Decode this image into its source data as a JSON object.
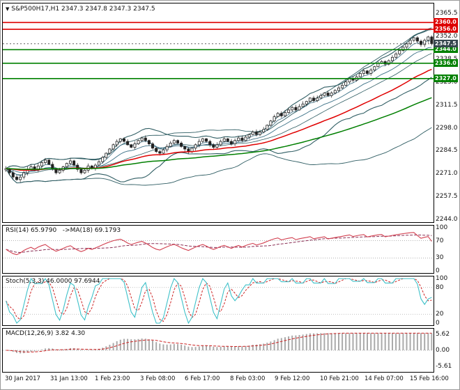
{
  "header": {
    "symbol_line": "S&P500H17,H1 2347.3 2347.8 2347.3 2347.5"
  },
  "indicator_labels": {
    "rsi": "RSI(14) 65.9790",
    "rsi_ma": "->MA(18) 69.1793",
    "stoch": "Stoch(5,3,3) 46.0000 97.6944",
    "macd": "MACD(12,26,9) 3.82 4.30"
  },
  "colors": {
    "resistance": "#dd0000",
    "support": "#008000",
    "current_tag_bg": "#37474f",
    "candle": "#222222",
    "band": "#2f5d63",
    "fast_ma": "#3b7086",
    "ma_red": "#e00000",
    "ma_green": "#007f00",
    "rsi": "#d23f4f",
    "rsi_ma": "#8a2f55",
    "stoch_k": "#3ec1c9",
    "signal_red": "#cc2222",
    "macd_hist": "#aaaaaa"
  },
  "chart_data": {
    "type": "candlestick",
    "title": "S&P500H17,H1",
    "timeframe": "H1",
    "ohlc_header": {
      "open": 2347.3,
      "high": 2347.8,
      "low": 2347.3,
      "close": 2347.5
    },
    "x_ticks": [
      "30 Jan 2017",
      "31 Jan 13:00",
      "1 Feb 23:00",
      "3 Feb 08:00",
      "6 Feb 17:00",
      "8 Feb 03:00",
      "9 Feb 12:00",
      "10 Feb 21:00",
      "14 Feb 07:00",
      "15 Feb 16:00"
    ],
    "y_ticks_main": [
      2365.5,
      2352.0,
      2338.5,
      2325.0,
      2311.5,
      2298.0,
      2284.5,
      2271.0,
      2257.5,
      2244.0
    ],
    "y_range_main": [
      2242.4,
      2371.2
    ],
    "levels": {
      "resistance": [
        2360.0,
        2356.0
      ],
      "current": 2347.5,
      "support": [
        2344.0,
        2336.0,
        2327.0
      ]
    },
    "close_series": [
      2274.0,
      2271.5,
      2269.0,
      2267.5,
      2269.0,
      2271.5,
      2273.5,
      2275.0,
      2273.0,
      2275.5,
      2277.5,
      2279.0,
      2276.5,
      2274.0,
      2271.5,
      2273.0,
      2275.0,
      2277.0,
      2278.5,
      2276.0,
      2273.5,
      2271.5,
      2273.0,
      2275.5,
      2274.0,
      2276.0,
      2278.0,
      2280.5,
      2283.0,
      2285.5,
      2288.0,
      2290.0,
      2291.5,
      2290.0,
      2288.0,
      2286.5,
      2288.5,
      2290.5,
      2292.0,
      2290.5,
      2288.5,
      2286.0,
      2284.0,
      2283.0,
      2285.0,
      2287.0,
      2289.0,
      2290.5,
      2289.0,
      2287.0,
      2285.5,
      2284.0,
      2286.0,
      2288.0,
      2290.0,
      2291.5,
      2290.0,
      2288.0,
      2286.5,
      2288.0,
      2290.0,
      2291.5,
      2290.0,
      2288.5,
      2290.5,
      2292.0,
      2290.5,
      2292.5,
      2294.0,
      2295.5,
      2294.0,
      2295.5,
      2297.0,
      2299.5,
      2302.0,
      2304.5,
      2306.5,
      2305.0,
      2307.0,
      2308.5,
      2310.0,
      2308.5,
      2310.5,
      2312.0,
      2313.5,
      2315.5,
      2314.0,
      2315.5,
      2317.0,
      2318.5,
      2317.0,
      2318.5,
      2320.0,
      2321.5,
      2323.0,
      2325.0,
      2327.0,
      2326.0,
      2328.0,
      2330.0,
      2331.5,
      2330.0,
      2332.0,
      2334.0,
      2336.0,
      2337.0,
      2335.5,
      2337.5,
      2339.5,
      2341.5,
      2343.5,
      2345.5,
      2347.5,
      2349.5,
      2351.0,
      2349.0,
      2347.0,
      2349.5,
      2351.5,
      2347.5
    ],
    "indicators": {
      "rsi": {
        "period": 14,
        "value": 65.979,
        "ma_period": 18,
        "ma_value": 69.1793,
        "ticks": [
          100,
          70,
          30,
          0
        ]
      },
      "stoch": {
        "params": "5,3,3",
        "k": 46.0,
        "d": 97.6944,
        "ticks": [
          100,
          80,
          20,
          0
        ]
      },
      "macd": {
        "params": "12,26,9",
        "macd": 3.82,
        "signal": 4.3,
        "ticks": [
          5.62,
          0.0,
          -5.61
        ]
      }
    }
  }
}
